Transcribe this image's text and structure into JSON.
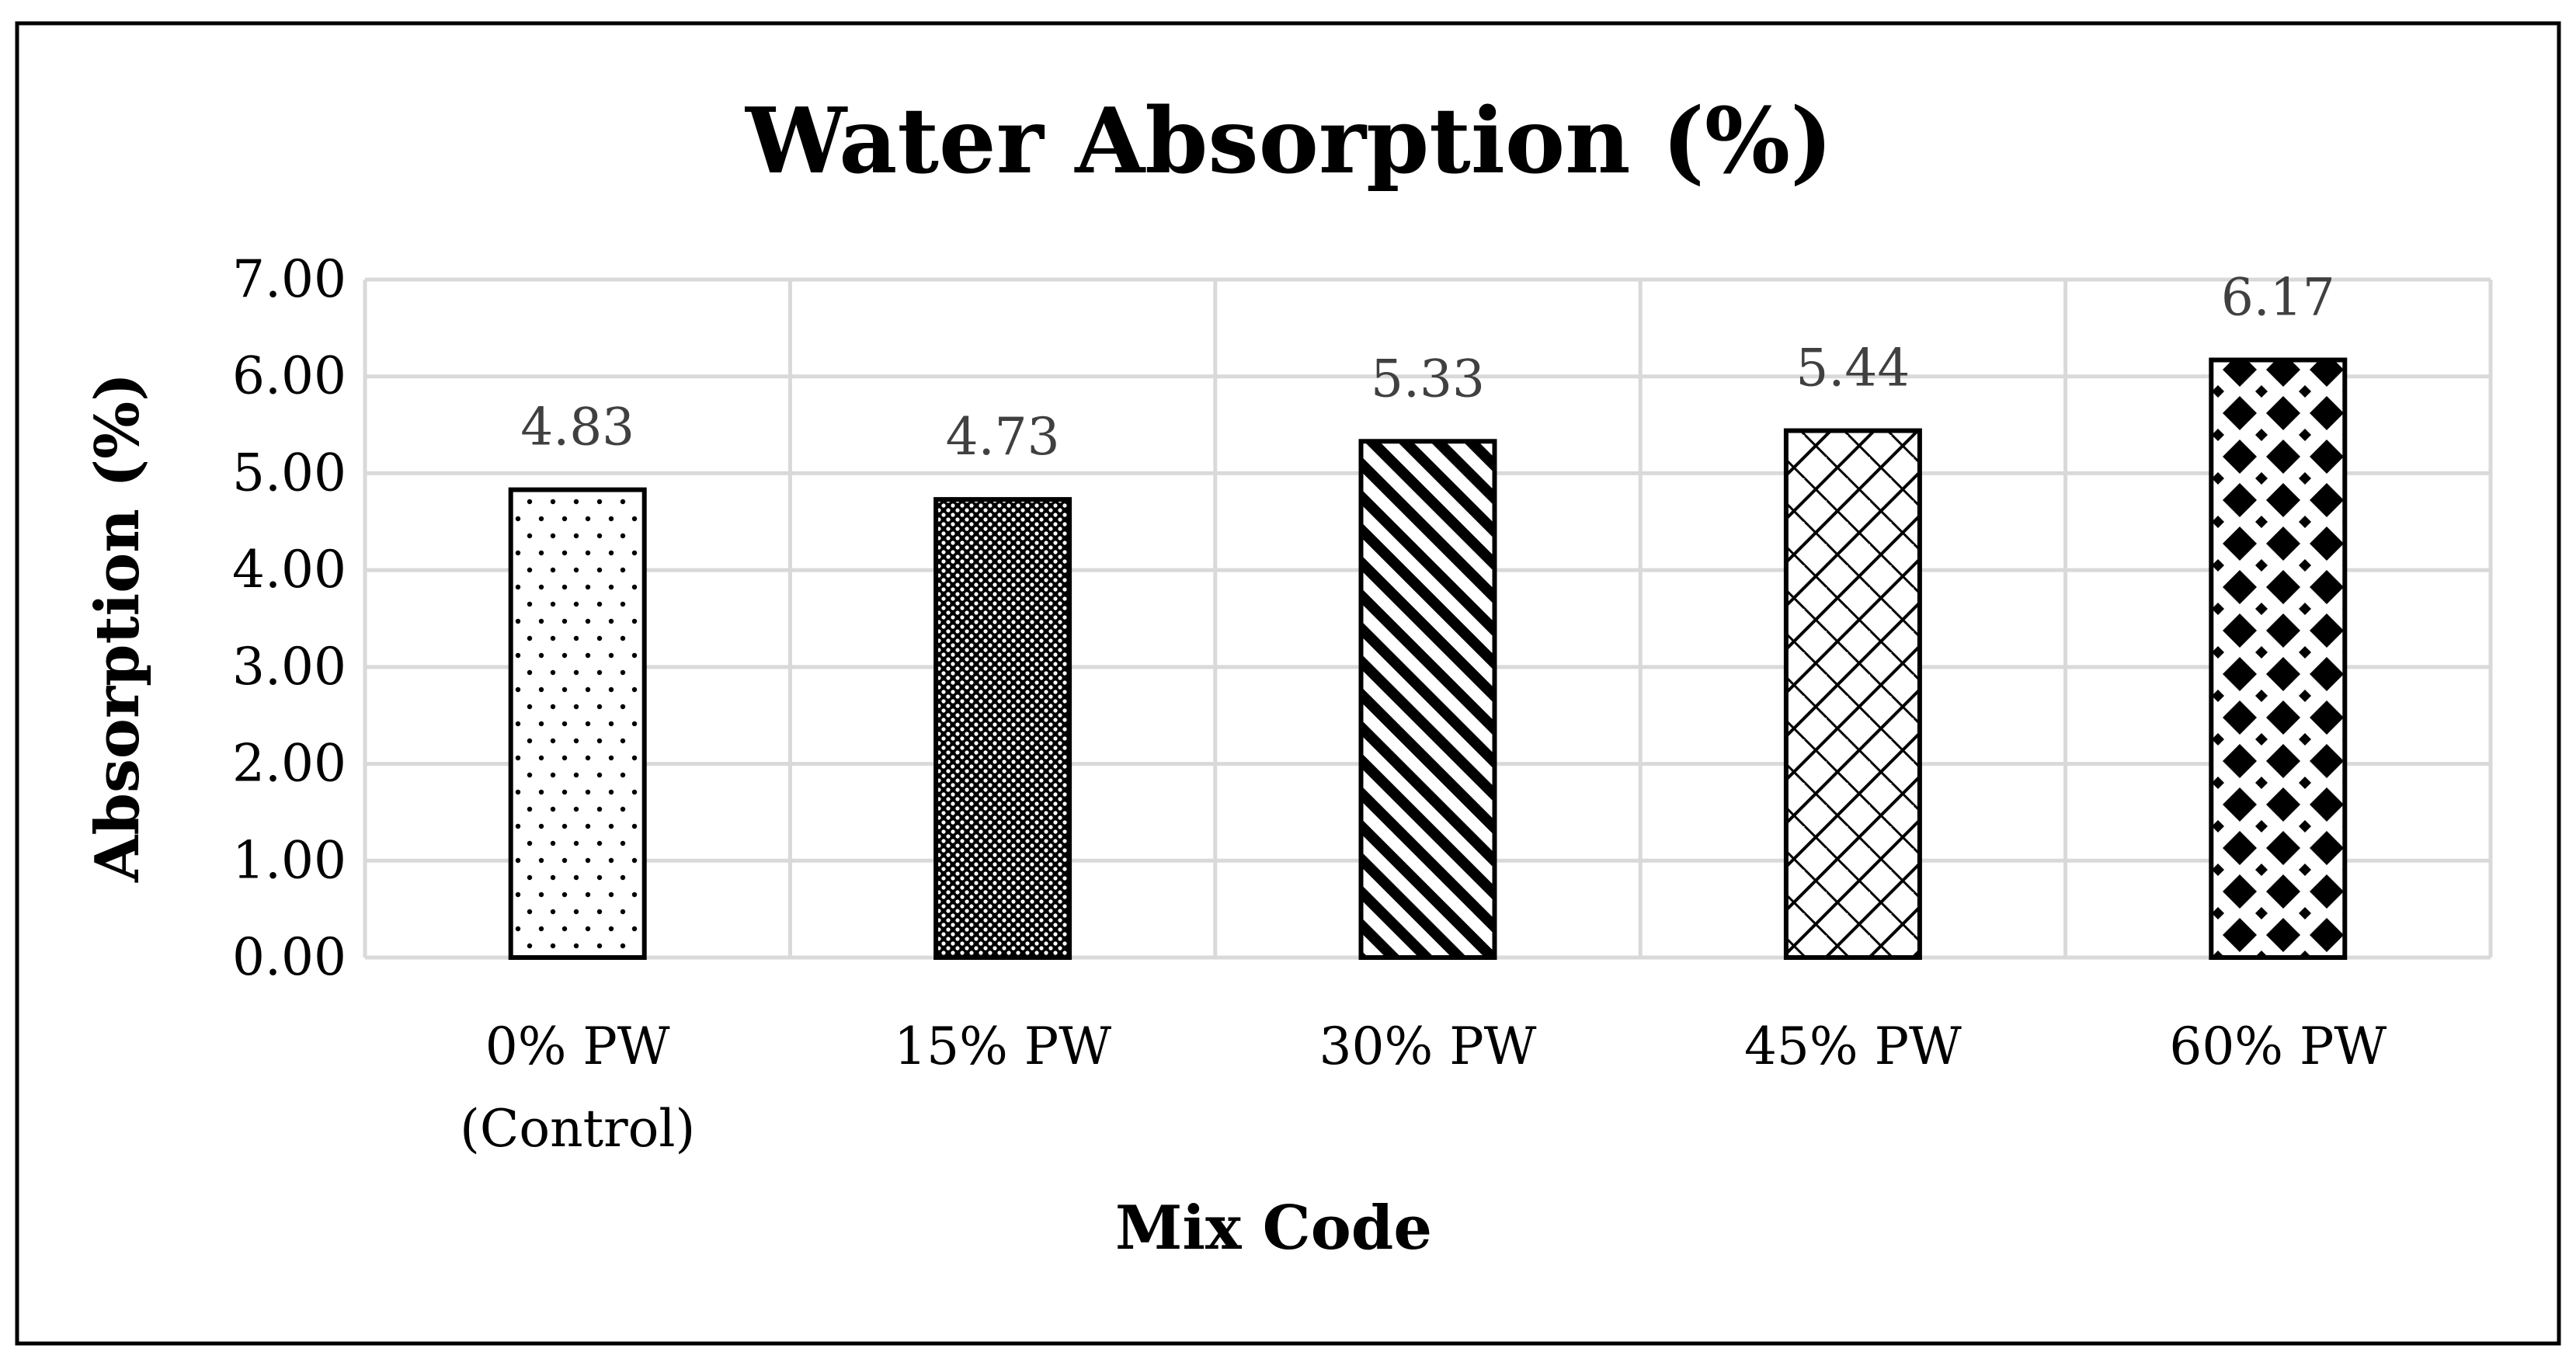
{
  "chart_data": {
    "type": "bar",
    "title": "Water Absorption (%)",
    "xlabel": "Mix Code",
    "ylabel": "Absorption (%)",
    "ylim": [
      0,
      7
    ],
    "yticks": [
      "0.00",
      "1.00",
      "2.00",
      "3.00",
      "4.00",
      "5.00",
      "6.00",
      "7.00"
    ],
    "grid": true,
    "categories": [
      [
        "0% PW",
        "(Control)"
      ],
      [
        "15% PW"
      ],
      [
        "30% PW"
      ],
      [
        "45% PW"
      ],
      [
        "60% PW"
      ]
    ],
    "values": [
      4.83,
      4.73,
      5.33,
      5.44,
      6.17
    ],
    "data_labels": [
      "4.83",
      "4.73",
      "5.33",
      "5.44",
      "6.17"
    ],
    "patterns": [
      "dots-sparse",
      "dots-dense",
      "diagonal-stripes",
      "diagonal-brick",
      "diamonds"
    ],
    "colors": {
      "bar_stroke": "#000000",
      "bar_fill_base": "#ffffff",
      "grid": "#d9d9d9",
      "data_label": "#404040",
      "frame": "#000000"
    }
  }
}
